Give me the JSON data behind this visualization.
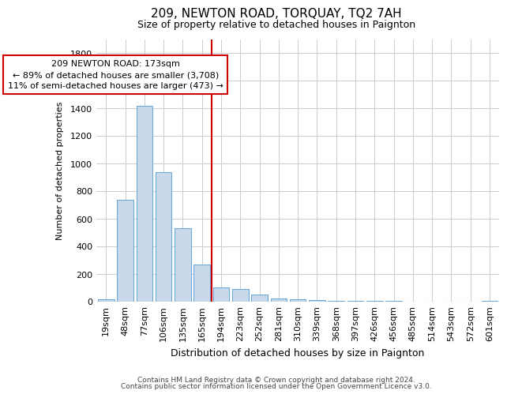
{
  "title": "209, NEWTON ROAD, TORQUAY, TQ2 7AH",
  "subtitle": "Size of property relative to detached houses in Paignton",
  "xlabel": "Distribution of detached houses by size in Paignton",
  "ylabel": "Number of detached properties",
  "bar_labels": [
    "19sqm",
    "48sqm",
    "77sqm",
    "106sqm",
    "135sqm",
    "165sqm",
    "194sqm",
    "223sqm",
    "252sqm",
    "281sqm",
    "310sqm",
    "339sqm",
    "368sqm",
    "397sqm",
    "426sqm",
    "456sqm",
    "485sqm",
    "514sqm",
    "543sqm",
    "572sqm",
    "601sqm"
  ],
  "bar_values": [
    20,
    735,
    1415,
    935,
    530,
    270,
    105,
    90,
    50,
    25,
    18,
    10,
    6,
    4,
    3,
    3,
    2,
    2,
    1,
    1,
    5
  ],
  "bar_color": "#c9d9ec",
  "bar_edge_color": "#6fa8d4",
  "vline_color": "#cc0000",
  "annotation_line1": "209 NEWTON ROAD: 173sqm",
  "annotation_line2": "← 89% of detached houses are smaller (3,708)",
  "annotation_line3": "11% of semi-detached houses are larger (473) →",
  "annotation_box_color": "#ffffff",
  "annotation_box_edge": "#cc0000",
  "ylim": [
    0,
    1900
  ],
  "yticks": [
    0,
    200,
    400,
    600,
    800,
    1000,
    1200,
    1400,
    1600,
    1800
  ],
  "footer_line1": "Contains HM Land Registry data © Crown copyright and database right 2024.",
  "footer_line2": "Contains public sector information licensed under the Open Government Licence v3.0.",
  "background_color": "#ffffff",
  "grid_color": "#cccccc",
  "title_fontsize": 11,
  "subtitle_fontsize": 9,
  "xlabel_fontsize": 9,
  "ylabel_fontsize": 8,
  "tick_fontsize": 8,
  "annotation_fontsize": 8,
  "footer_fontsize": 6.5
}
